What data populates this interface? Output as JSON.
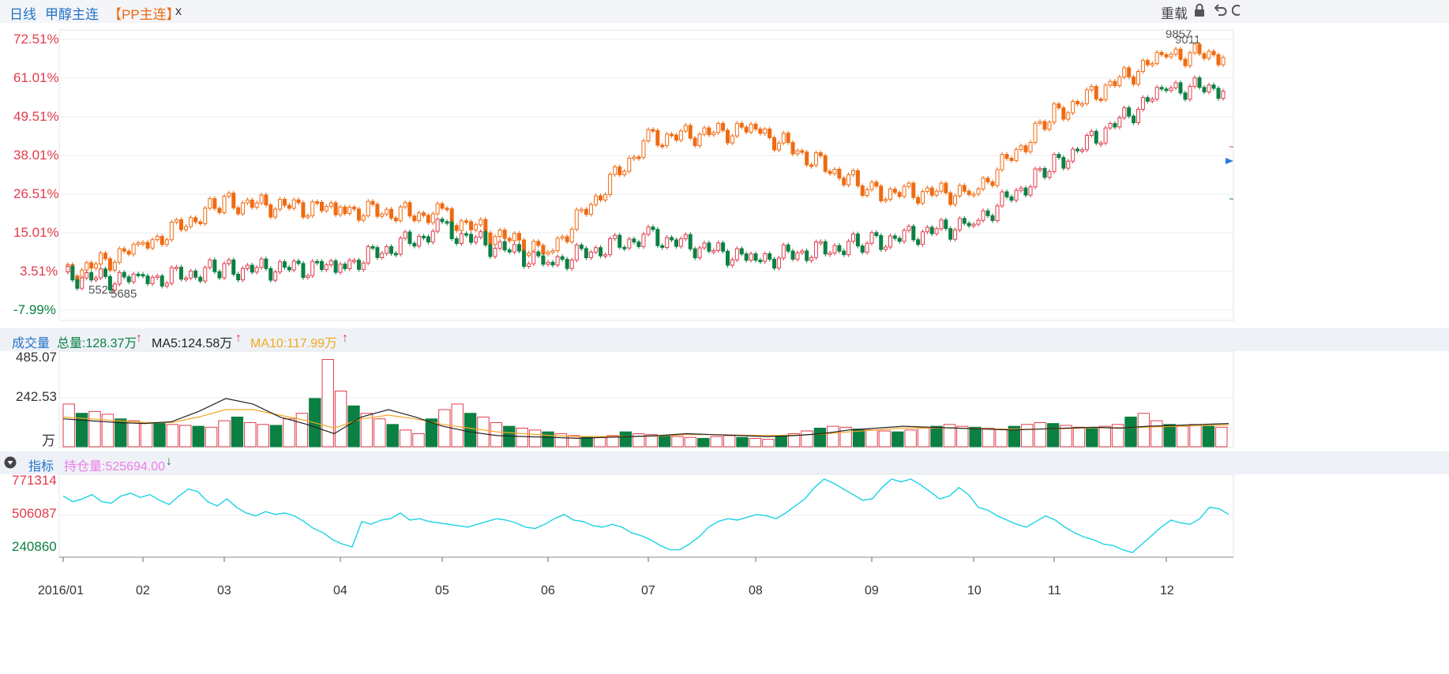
{
  "tabs": {
    "daily": "日线",
    "methanol": "甲醇主连",
    "pp": "【PP主连】",
    "close": "x"
  },
  "toolbar": {
    "reload": "重载",
    "lock_icon": "lock-icon",
    "undo_icon": "undo-icon"
  },
  "main_axis": {
    "labels": [
      "72.51%",
      "61.01%",
      "49.51%",
      "38.01%",
      "26.51%",
      "15.01%",
      "3.51%",
      "-7.99%"
    ]
  },
  "annotations": {
    "high_a": "9857",
    "high_b": "9011",
    "low_a": "5525",
    "low_b": "5685"
  },
  "volume": {
    "title": "成交量",
    "total": "总量:128.37万",
    "ma5": "MA5:124.58万",
    "ma10": "MA10:117.99万",
    "axis": [
      "485.07",
      "242.53",
      "万"
    ]
  },
  "indicator": {
    "title": "指标",
    "oi": "持仓量:525694.00",
    "axis": [
      "771314",
      "506087",
      "240860"
    ]
  },
  "x_axis": [
    "2016/01",
    "02",
    "03",
    "04",
    "05",
    "06",
    "07",
    "08",
    "09",
    "10",
    "11",
    "12"
  ],
  "colors": {
    "up": "#e23b4b",
    "down": "#0b8043",
    "pp": "#f06a11",
    "ma5": "#222222",
    "ma10": "#f5a623",
    "oi": "#1ad3e6",
    "axis_red": "#e23b4b",
    "axis_green": "#0b8043"
  },
  "chart_data": [
    {
      "type": "candlestick",
      "name": "PP主连",
      "unit": "percent change",
      "ylim": [
        -7.99,
        72.51
      ],
      "series": [
        {
          "name": "PP主连",
          "months": [
            "2016/01",
            "02",
            "03",
            "04",
            "05",
            "06",
            "07",
            "08",
            "09",
            "10",
            "11",
            "12"
          ],
          "values": [
            2,
            11,
            24,
            22,
            20,
            9,
            43,
            46,
            27,
            27,
            50,
            68
          ]
        },
        {
          "name": "甲醇主连",
          "months": [
            "2016/01",
            "02",
            "03",
            "04",
            "05",
            "06",
            "07",
            "08",
            "09",
            "10",
            "11",
            "12"
          ],
          "values": [
            2,
            1,
            4,
            5,
            16,
            6,
            14,
            7,
            12,
            18,
            35,
            58
          ]
        }
      ]
    },
    {
      "type": "bar",
      "name": "成交量",
      "ylim": [
        0,
        485.07
      ],
      "values": [
        230,
        180,
        190,
        175,
        150,
        140,
        130,
        125,
        120,
        115,
        110,
        105,
        140,
        160,
        130,
        120,
        115,
        150,
        180,
        260,
        470,
        300,
        220,
        180,
        150,
        120,
        90,
        70,
        150,
        200,
        230,
        180,
        160,
        130,
        110,
        100,
        90,
        80,
        70,
        60,
        55,
        50,
        60,
        80,
        70,
        65,
        60,
        55,
        50,
        45,
        55,
        60,
        50,
        45,
        40,
        55,
        70,
        85,
        100,
        110,
        105,
        95,
        90,
        85,
        80,
        90,
        100,
        110,
        120,
        110,
        105,
        100,
        95,
        110,
        120,
        130,
        125,
        115,
        105,
        100,
        110,
        120,
        160,
        180,
        140,
        120,
        110,
        120,
        110,
        105
      ],
      "ma5": [
        150,
        140,
        130,
        125,
        135,
        190,
        260,
        230,
        160,
        120,
        70,
        160,
        200,
        160,
        110,
        80,
        60,
        55,
        50,
        45,
        50,
        55,
        60,
        70,
        65,
        60,
        55,
        60,
        70,
        90,
        100,
        110,
        105,
        100,
        95,
        90,
        95,
        100,
        105,
        100,
        110,
        115,
        120,
        125
      ],
      "ma10": [
        160,
        150,
        140,
        130,
        130,
        160,
        200,
        200,
        170,
        140,
        100,
        150,
        170,
        150,
        120,
        100,
        80,
        70,
        60,
        55,
        55,
        55,
        58,
        65,
        65,
        62,
        60,
        62,
        68,
        80,
        90,
        100,
        102,
        100,
        97,
        94,
        95,
        98,
        102,
        102,
        105,
        110,
        114,
        118
      ]
    },
    {
      "type": "line",
      "name": "持仓量",
      "ylim": [
        240860,
        771314
      ],
      "values": [
        640000,
        600000,
        620000,
        650000,
        600000,
        590000,
        640000,
        660000,
        630000,
        650000,
        610000,
        580000,
        640000,
        690000,
        670000,
        600000,
        570000,
        620000,
        560000,
        520000,
        500000,
        530000,
        510000,
        520000,
        500000,
        460000,
        410000,
        380000,
        330000,
        300000,
        280000,
        460000,
        440000,
        470000,
        480000,
        520000,
        470000,
        480000,
        460000,
        450000,
        440000,
        430000,
        420000,
        440000,
        460000,
        480000,
        470000,
        450000,
        420000,
        410000,
        440000,
        480000,
        510000,
        470000,
        460000,
        430000,
        420000,
        440000,
        420000,
        380000,
        360000,
        330000,
        290000,
        260000,
        260000,
        300000,
        350000,
        420000,
        460000,
        480000,
        470000,
        490000,
        510000,
        500000,
        480000,
        520000,
        570000,
        620000,
        700000,
        760000,
        730000,
        690000,
        650000,
        610000,
        620000,
        700000,
        760000,
        740000,
        760000,
        720000,
        670000,
        620000,
        640000,
        700000,
        650000,
        560000,
        540000,
        500000,
        470000,
        440000,
        420000,
        460000,
        500000,
        470000,
        420000,
        380000,
        350000,
        330000,
        300000,
        290000,
        260000,
        240000,
        300000,
        360000,
        420000,
        470000,
        450000,
        440000,
        480000,
        560000,
        550000,
        510000
      ]
    }
  ]
}
